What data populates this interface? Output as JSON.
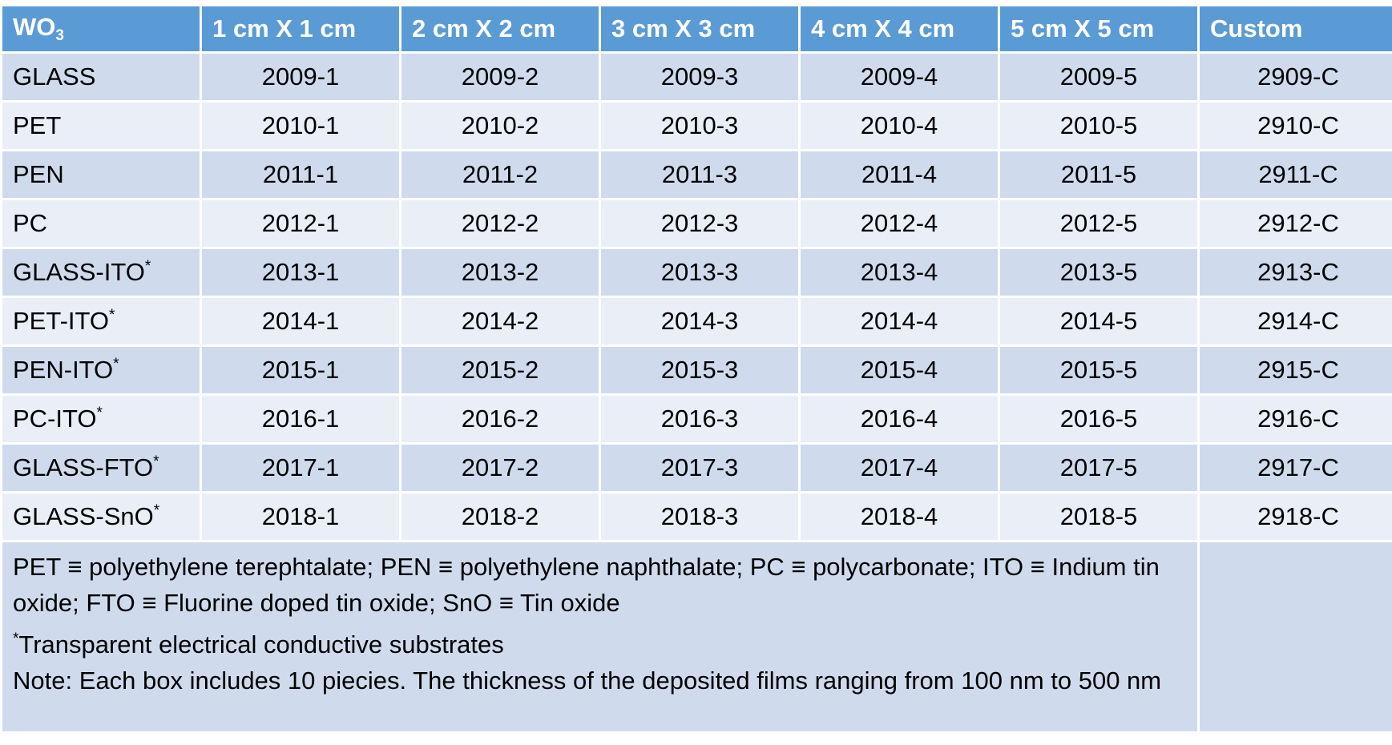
{
  "header": {
    "corner_label": "WO",
    "corner_sub": "3",
    "columns": [
      "1 cm X 1 cm",
      "2 cm X 2 cm",
      "3 cm X 3 cm",
      "4 cm X 4 cm",
      "5 cm X 5 cm",
      "Custom"
    ]
  },
  "rows": [
    {
      "label": "GLASS",
      "star": "",
      "cells": [
        "2009-1",
        "2009-2",
        "2009-3",
        "2009-4",
        "2009-5",
        "2909-C"
      ]
    },
    {
      "label": "PET",
      "star": "",
      "cells": [
        "2010-1",
        "2010-2",
        "2010-3",
        "2010-4",
        "2010-5",
        "2910-C"
      ]
    },
    {
      "label": "PEN",
      "star": "",
      "cells": [
        "2011-1",
        "2011-2",
        "2011-3",
        "2011-4",
        "2011-5",
        "2911-C"
      ]
    },
    {
      "label": "PC",
      "star": "",
      "cells": [
        "2012-1",
        "2012-2",
        "2012-3",
        "2012-4",
        "2012-5",
        "2912-C"
      ]
    },
    {
      "label": "GLASS-ITO",
      "star": "*",
      "cells": [
        "2013-1",
        "2013-2",
        "2013-3",
        "2013-4",
        "2013-5",
        "2913-C"
      ]
    },
    {
      "label": "PET-ITO",
      "star": "*",
      "cells": [
        "2014-1",
        "2014-2",
        "2014-3",
        "2014-4",
        "2014-5",
        "2914-C"
      ]
    },
    {
      "label": "PEN-ITO",
      "star": "*",
      "cells": [
        "2015-1",
        "2015-2",
        "2015-3",
        "2015-4",
        "2015-5",
        "2915-C"
      ]
    },
    {
      "label": "PC-ITO",
      "star": "*",
      "cells": [
        "2016-1",
        "2016-2",
        "2016-3",
        "2016-4",
        "2016-5",
        "2916-C"
      ]
    },
    {
      "label": "GLASS-FTO",
      "star": "*",
      "cells": [
        "2017-1",
        "2017-2",
        "2017-3",
        "2017-4",
        "2017-5",
        "2917-C"
      ]
    },
    {
      "label": "GLASS-SnO",
      "star": "*",
      "cells": [
        "2018-1",
        "2018-2",
        "2018-3",
        "2018-4",
        "2018-5",
        "2918-C"
      ]
    }
  ],
  "notes": {
    "abbreviations": "PET ≡ polyethylene terephtalate; PEN ≡ polyethylene naphthalate; PC ≡ polycarbonate; ITO ≡ Indium tin oxide; FTO ≡ Fluorine doped tin oxide; SnO ≡ Tin oxide",
    "footnote_star": "*",
    "footnote_text": "Transparent electrical conductive substrates",
    "note": "Note: Each box includes 10 piecies. The thickness of the deposited films ranging from 100 nm to 500 nm"
  },
  "colors": {
    "header_bg": "#5b9bd5",
    "row_dark": "#cfdbed",
    "row_light": "#e9eef7"
  }
}
